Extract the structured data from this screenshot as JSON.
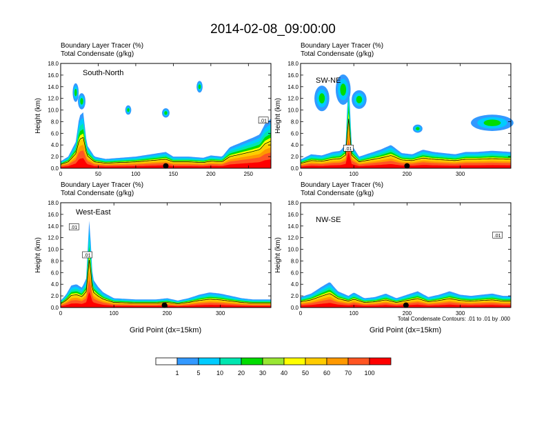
{
  "title": "2014-02-08_09:00:00",
  "colors": {
    "levels": [
      "#ffffff",
      "#3399ff",
      "#00ccff",
      "#00e6b0",
      "#00dd00",
      "#99e633",
      "#ffff00",
      "#ffcc00",
      "#ff9900",
      "#ff5522",
      "#ff0000"
    ],
    "contour": "#000000",
    "marker": "#000000"
  },
  "colorbar": {
    "labels": [
      "1",
      "5",
      "10",
      "20",
      "30",
      "40",
      "50",
      "60",
      "70",
      "100"
    ]
  },
  "contour_note": "Total Condensate Contours: .01 to .01 by .000",
  "chart_data": [
    {
      "type": "heatmap",
      "panel": "South-North",
      "title_line1": "Boundary Layer Tracer   (%)",
      "title_line2": "Total Condensate   (g/kg)",
      "ylabel": "Height (km)",
      "xlabel": "",
      "xlim": [
        0,
        280
      ],
      "ylim": [
        0,
        18
      ],
      "xticks": [
        "0",
        "50",
        "100",
        "150",
        "200",
        "250"
      ],
      "xtick_values": [
        0,
        50,
        100,
        150,
        200,
        250
      ],
      "yticks": [
        "0.0",
        "2.0",
        "4.0",
        "6.0",
        "8.0",
        "10.0",
        "12.0",
        "14.0",
        "16.0",
        "18.0"
      ],
      "ytick_values": [
        0,
        2,
        4,
        6,
        8,
        10,
        12,
        14,
        16,
        18
      ],
      "marker_x": 140,
      "contour_labels": [
        {
          "text": ".01",
          "x": 270,
          "y": 8.2
        }
      ],
      "boundary_top_km": [
        [
          0,
          1.2
        ],
        [
          10,
          2.0
        ],
        [
          20,
          4.5
        ],
        [
          25,
          9.0
        ],
        [
          30,
          9.6
        ],
        [
          35,
          4.0
        ],
        [
          45,
          2.0
        ],
        [
          60,
          1.6
        ],
        [
          80,
          1.8
        ],
        [
          100,
          2.0
        ],
        [
          120,
          2.4
        ],
        [
          140,
          2.8
        ],
        [
          150,
          2.0
        ],
        [
          170,
          2.0
        ],
        [
          190,
          1.8
        ],
        [
          200,
          2.2
        ],
        [
          215,
          2.0
        ],
        [
          225,
          3.6
        ],
        [
          240,
          4.4
        ],
        [
          255,
          5.2
        ],
        [
          265,
          5.8
        ],
        [
          272,
          7.6
        ],
        [
          280,
          8.5
        ]
      ],
      "blobs": [
        {
          "x": 20,
          "y": 13.0,
          "w": 4,
          "h": 1.6
        },
        {
          "x": 28,
          "y": 11.5,
          "w": 5,
          "h": 1.4
        },
        {
          "x": 90,
          "y": 10.0,
          "w": 4,
          "h": 0.8
        },
        {
          "x": 185,
          "y": 14.0,
          "w": 4,
          "h": 1.0
        },
        {
          "x": 140,
          "y": 9.5,
          "w": 5,
          "h": 0.8
        }
      ]
    },
    {
      "type": "heatmap",
      "panel": "SW-NE",
      "title_line1": "Boundary Layer Tracer   (%)",
      "title_line2": "Total Condensate   (g/kg)",
      "ylabel": "Height (km)",
      "xlabel": "",
      "xlim": [
        0,
        395
      ],
      "ylim": [
        0,
        18
      ],
      "xticks": [
        "0",
        "100",
        "200",
        "300"
      ],
      "xtick_values": [
        0,
        100,
        200,
        300
      ],
      "yticks": [
        "0.0",
        "2.0",
        "4.0",
        "6.0",
        "8.0",
        "10.0",
        "12.0",
        "14.0",
        "16.0",
        "18.0"
      ],
      "ytick_values": [
        0,
        2,
        4,
        6,
        8,
        10,
        12,
        14,
        16,
        18
      ],
      "marker_x": 200,
      "contour_labels": [
        {
          "text": ".01",
          "x": 90,
          "y": 3.4
        }
      ],
      "boundary_top_km": [
        [
          0,
          1.5
        ],
        [
          20,
          2.4
        ],
        [
          40,
          2.2
        ],
        [
          60,
          2.8
        ],
        [
          75,
          3.0
        ],
        [
          85,
          4.2
        ],
        [
          90,
          16.0
        ],
        [
          96,
          4.0
        ],
        [
          110,
          2.0
        ],
        [
          130,
          2.6
        ],
        [
          150,
          3.2
        ],
        [
          170,
          4.0
        ],
        [
          190,
          2.6
        ],
        [
          210,
          2.4
        ],
        [
          230,
          3.2
        ],
        [
          250,
          2.8
        ],
        [
          270,
          2.6
        ],
        [
          290,
          2.4
        ],
        [
          310,
          2.8
        ],
        [
          330,
          2.8
        ],
        [
          360,
          3.0
        ],
        [
          395,
          2.8
        ]
      ],
      "blobs": [
        {
          "x": 40,
          "y": 12.0,
          "w": 14,
          "h": 2.2
        },
        {
          "x": 80,
          "y": 13.5,
          "w": 14,
          "h": 2.6
        },
        {
          "x": 110,
          "y": 11.8,
          "w": 14,
          "h": 1.6
        },
        {
          "x": 220,
          "y": 6.8,
          "w": 9,
          "h": 0.7
        },
        {
          "x": 360,
          "y": 7.8,
          "w": 40,
          "h": 1.4
        }
      ]
    },
    {
      "type": "heatmap",
      "panel": "West-East",
      "title_line1": "Boundary Layer Tracer   (%)",
      "title_line2": "Total Condensate   (g/kg)",
      "ylabel": "Height (km)",
      "xlabel": "Grid Point (dx=15km)",
      "xlim": [
        0,
        395
      ],
      "ylim": [
        0,
        18
      ],
      "xticks": [
        "0",
        "100",
        "200",
        "300"
      ],
      "xtick_values": [
        0,
        100,
        200,
        300
      ],
      "yticks": [
        "0.0",
        "2.0",
        "4.0",
        "6.0",
        "8.0",
        "10.0",
        "12.0",
        "14.0",
        "16.0",
        "18.0"
      ],
      "ytick_values": [
        0,
        2,
        4,
        6,
        8,
        10,
        12,
        14,
        16,
        18
      ],
      "marker_x": 195,
      "contour_labels": [
        {
          "text": ".01",
          "x": 25,
          "y": 13.8
        },
        {
          "text": ".01",
          "x": 50,
          "y": 9.0
        }
      ],
      "boundary_top_km": [
        [
          0,
          1.2
        ],
        [
          10,
          2.2
        ],
        [
          20,
          3.8
        ],
        [
          30,
          4.0
        ],
        [
          40,
          3.4
        ],
        [
          48,
          5.0
        ],
        [
          54,
          15.6
        ],
        [
          60,
          5.0
        ],
        [
          70,
          3.6
        ],
        [
          80,
          2.6
        ],
        [
          100,
          1.6
        ],
        [
          140,
          1.4
        ],
        [
          180,
          1.4
        ],
        [
          200,
          1.6
        ],
        [
          220,
          1.2
        ],
        [
          240,
          1.6
        ],
        [
          260,
          2.2
        ],
        [
          280,
          2.6
        ],
        [
          300,
          2.4
        ],
        [
          320,
          2.0
        ],
        [
          340,
          1.6
        ],
        [
          360,
          1.4
        ],
        [
          395,
          1.4
        ]
      ],
      "blobs": []
    },
    {
      "type": "heatmap",
      "panel": "NW-SE",
      "title_line1": "Boundary Layer Tracer   (%)",
      "title_line2": "Total Condensate   (g/kg)",
      "ylabel": "Height (km)",
      "xlabel": "Grid Point (dx=15km)",
      "xlim": [
        0,
        395
      ],
      "ylim": [
        0,
        18
      ],
      "xticks": [
        "0",
        "100",
        "200",
        "300"
      ],
      "xtick_values": [
        0,
        100,
        200,
        300
      ],
      "yticks": [
        "0.0",
        "2.0",
        "4.0",
        "6.0",
        "8.0",
        "10.0",
        "12.0",
        "14.0",
        "16.0",
        "18.0"
      ],
      "ytick_values": [
        0,
        2,
        4,
        6,
        8,
        10,
        12,
        14,
        16,
        18
      ],
      "marker_x": 198,
      "contour_labels": [
        {
          "text": ".01",
          "x": 370,
          "y": 12.4
        }
      ],
      "boundary_top_km": [
        [
          0,
          1.8
        ],
        [
          20,
          2.4
        ],
        [
          40,
          3.6
        ],
        [
          55,
          4.4
        ],
        [
          70,
          2.8
        ],
        [
          90,
          2.0
        ],
        [
          100,
          2.6
        ],
        [
          120,
          1.6
        ],
        [
          140,
          1.8
        ],
        [
          160,
          2.4
        ],
        [
          180,
          1.6
        ],
        [
          200,
          2.2
        ],
        [
          220,
          2.8
        ],
        [
          240,
          1.8
        ],
        [
          260,
          2.2
        ],
        [
          280,
          2.8
        ],
        [
          300,
          2.2
        ],
        [
          320,
          2.0
        ],
        [
          340,
          2.2
        ],
        [
          360,
          2.4
        ],
        [
          380,
          2.0
        ],
        [
          395,
          2.0
        ]
      ],
      "blobs": []
    }
  ]
}
